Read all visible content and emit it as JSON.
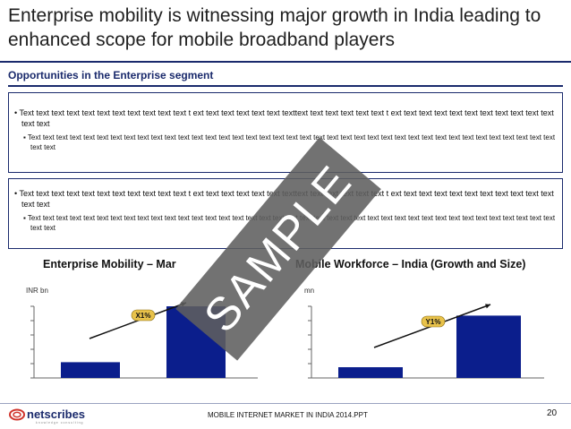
{
  "slide": {
    "title": "Enterprise mobility is witnessing major growth in India leading to enhanced scope for mobile broadband players",
    "subtitle": "Opportunities in the Enterprise segment"
  },
  "boxes": [
    {
      "bullet": "• Text text text text text text text text text text text t ext text text text text text texttext text text text text text t ext text text text text text text text text text text text text",
      "sub_bullet": "Text text text text text text text text text text text text text text text text text text text text text text text text text text text text text text text text text text text text text text text text text"
    },
    {
      "bullet": "• Text text text text text text text text text text text t ext text text text text text texttext text text text text text t ext text text text text text text text text text text text text",
      "sub_bullet": "Text text text text text text text text text text text text text text text text text text text text text text text text text text text text text text text text text text text text text text text text text"
    }
  ],
  "charts": {
    "left_title": "Enterprise Mobility – Mar",
    "right_title": "Mobile Workforce – India (Growth and Size)",
    "left_unit": "INR bn",
    "right_unit": "mn"
  },
  "chart_data": [
    {
      "type": "bar",
      "title": "Enterprise Mobility – Mar",
      "ylabel": "INR bn",
      "categories": [
        "",
        ""
      ],
      "values": [
        22,
        100
      ],
      "ylim": [
        0,
        100
      ],
      "annotation": "X1%",
      "bar_color": "#0b1e8c"
    },
    {
      "type": "bar",
      "title": "Mobile Workforce – India (Growth and Size)",
      "ylabel": "mn",
      "categories": [
        "",
        ""
      ],
      "values": [
        15,
        87
      ],
      "ylim": [
        0,
        100
      ],
      "annotation": "Y1%",
      "bar_color": "#0b1e8c"
    }
  ],
  "watermark": "SAMPLE",
  "footer": {
    "logo_text": "netscribes",
    "logo_tagline": "knowledge consulting",
    "center_text": "MOBILE INTERNET MARKET IN INDIA 2014.PPT",
    "page_number": "20"
  },
  "colors": {
    "brand_navy": "#1a2a6c",
    "bar_blue": "#0b1e8c",
    "label_yellow": "#e8c24a",
    "logo_red": "#d0342c"
  }
}
